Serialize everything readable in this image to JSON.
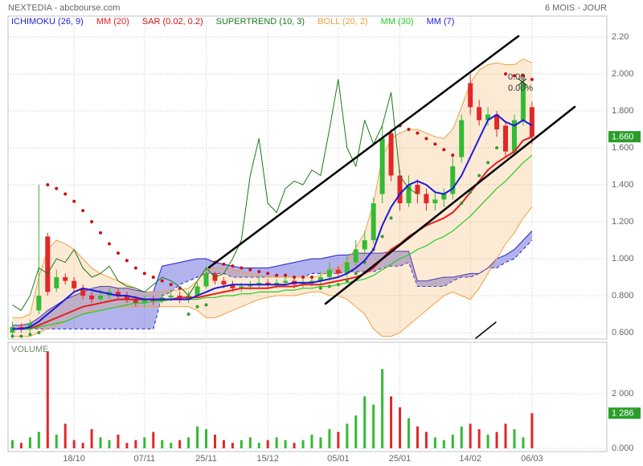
{
  "chart_data": [
    {
      "type": "candlestick",
      "title": "NEXTEDIA - abcbourse.com",
      "subtitle": "6 MOIS - JOUR",
      "categories": [
        null,
        null,
        null,
        null,
        null,
        null,
        null,
        "18/10",
        null,
        null,
        null,
        null,
        null,
        null,
        null,
        "07/11",
        null,
        null,
        null,
        null,
        null,
        null,
        "25/11",
        null,
        null,
        null,
        null,
        null,
        null,
        "15/12",
        null,
        null,
        null,
        null,
        null,
        null,
        null,
        "05/01",
        null,
        null,
        null,
        null,
        null,
        null,
        "25/01",
        null,
        null,
        null,
        null,
        null,
        null,
        null,
        "14/02",
        null,
        null,
        null,
        null,
        null,
        null,
        "06/03"
      ],
      "open": [
        0.6,
        0.63,
        0.62,
        0.72,
        1.12,
        0.84,
        0.9,
        0.88,
        0.84,
        0.8,
        0.78,
        0.8,
        0.82,
        0.8,
        0.78,
        0.76,
        0.78,
        0.77,
        0.79,
        0.8,
        0.78,
        0.8,
        0.85,
        0.92,
        0.88,
        0.86,
        0.84,
        0.85,
        0.86,
        0.87,
        0.86,
        0.87,
        0.88,
        0.86,
        0.87,
        0.88,
        0.9,
        0.94,
        0.92,
        0.98,
        1.05,
        1.1,
        1.35,
        1.68,
        1.45,
        1.3,
        1.4,
        1.35,
        1.3,
        1.32,
        1.35,
        1.55,
        1.95,
        1.82,
        1.75,
        1.78,
        1.72,
        1.58,
        1.75,
        1.82
      ],
      "high": [
        0.66,
        0.65,
        0.67,
        1.4,
        1.14,
        0.94,
        0.92,
        0.9,
        0.86,
        0.82,
        0.83,
        0.84,
        0.84,
        0.82,
        0.8,
        0.8,
        0.8,
        0.81,
        0.83,
        0.82,
        0.82,
        0.87,
        0.96,
        0.93,
        0.9,
        0.88,
        0.87,
        0.88,
        0.9,
        0.89,
        0.89,
        0.91,
        0.9,
        0.89,
        0.9,
        0.93,
        0.98,
        0.96,
        1.02,
        1.1,
        1.15,
        1.33,
        1.72,
        1.7,
        1.48,
        1.45,
        1.43,
        1.38,
        1.36,
        1.38,
        1.55,
        1.78,
        2.0,
        1.86,
        1.82,
        1.8,
        1.74,
        1.78,
        1.98,
        1.85
      ],
      "low": [
        0.58,
        0.6,
        0.6,
        0.7,
        0.8,
        0.82,
        0.86,
        0.82,
        0.78,
        0.76,
        0.77,
        0.78,
        0.78,
        0.76,
        0.74,
        0.74,
        0.75,
        0.76,
        0.77,
        0.76,
        0.76,
        0.79,
        0.84,
        0.86,
        0.84,
        0.82,
        0.82,
        0.83,
        0.84,
        0.84,
        0.84,
        0.85,
        0.84,
        0.84,
        0.85,
        0.86,
        0.88,
        0.9,
        0.9,
        0.96,
        1.02,
        1.08,
        1.3,
        1.42,
        1.26,
        1.28,
        1.3,
        1.26,
        1.26,
        1.28,
        1.32,
        1.52,
        1.78,
        1.72,
        1.72,
        1.66,
        1.55,
        1.56,
        1.72,
        1.62
      ],
      "close": [
        0.63,
        0.62,
        0.65,
        0.8,
        0.82,
        0.9,
        0.88,
        0.84,
        0.8,
        0.78,
        0.8,
        0.82,
        0.8,
        0.78,
        0.76,
        0.78,
        0.77,
        0.79,
        0.8,
        0.78,
        0.8,
        0.85,
        0.92,
        0.88,
        0.86,
        0.84,
        0.85,
        0.86,
        0.87,
        0.86,
        0.87,
        0.88,
        0.86,
        0.87,
        0.88,
        0.9,
        0.94,
        0.92,
        0.98,
        1.05,
        1.1,
        1.3,
        1.65,
        1.45,
        1.3,
        1.4,
        1.35,
        1.3,
        1.32,
        1.35,
        1.5,
        1.75,
        1.82,
        1.75,
        1.78,
        1.7,
        1.58,
        1.75,
        1.95,
        1.66
      ],
      "up_color": "#33bb33",
      "down_color": "#e02828",
      "last_label": "1.660",
      "annotations": [
        "0.00",
        "0.00%"
      ],
      "ylim": [
        0.565,
        2.313
      ],
      "yticks": [
        {
          "value": 0.6,
          "label": "0.600"
        },
        {
          "value": 0.8,
          "label": "0.800"
        },
        {
          "value": 1.0,
          "label": "1.000"
        },
        {
          "value": 1.2,
          "label": "1.200"
        },
        {
          "value": 1.4,
          "label": "1.400"
        },
        {
          "value": 1.6,
          "label": "1.600"
        },
        {
          "value": 1.8,
          "label": "1.800"
        },
        {
          "value": 2.0,
          "label": "2.000"
        },
        {
          "value": 2.2,
          "label": "2.20"
        }
      ],
      "grid": true,
      "series": [
        {
          "name": "ICHIMOKU (26, 9)",
          "kind": "cloud",
          "color": "#2222cc",
          "span_a": [
            0.64,
            0.64,
            0.65,
            0.68,
            0.72,
            0.75,
            0.78,
            0.8,
            0.82,
            0.84,
            0.85,
            0.85,
            0.84,
            0.84,
            0.83,
            0.82,
            0.82,
            0.96,
            0.97,
            0.98,
            0.99,
            1.0,
            1.0,
            0.98,
            0.97,
            0.96,
            0.95,
            0.95,
            0.95,
            0.95,
            0.96,
            0.97,
            0.98,
            0.99,
            1.0,
            1.0,
            1.01,
            1.02,
            1.02,
            1.03,
            1.03,
            1.03,
            1.03,
            1.04,
            1.04,
            1.04,
            0.88,
            0.88,
            0.89,
            0.9,
            0.9,
            0.91,
            0.92,
            0.92,
            0.95,
            1.0,
            1.02,
            1.05,
            1.1,
            1.15
          ],
          "span_b": [
            0.62,
            0.62,
            0.62,
            0.62,
            0.62,
            0.62,
            0.62,
            0.62,
            0.62,
            0.62,
            0.62,
            0.62,
            0.62,
            0.62,
            0.62,
            0.62,
            0.62,
            0.8,
            0.82,
            0.86,
            0.88,
            0.9,
            0.92,
            0.92,
            0.92,
            0.9,
            0.9,
            0.9,
            0.9,
            0.9,
            0.9,
            0.9,
            0.9,
            0.9,
            0.92,
            0.92,
            0.92,
            0.92,
            0.93,
            0.93,
            0.93,
            0.93,
            0.95,
            0.96,
            0.96,
            0.98,
            0.85,
            0.85,
            0.85,
            0.85,
            0.88,
            0.9,
            0.9,
            0.92,
            0.95,
            0.95,
            0.98,
            1.0,
            1.05,
            1.1
          ]
        },
        {
          "name": "MM (20)",
          "kind": "line",
          "color": "#e02020",
          "width": 2,
          "values": [
            0.62,
            0.62,
            0.62,
            0.64,
            0.66,
            0.68,
            0.7,
            0.72,
            0.74,
            0.75,
            0.76,
            0.77,
            0.78,
            0.78,
            0.78,
            0.78,
            0.78,
            0.78,
            0.78,
            0.79,
            0.79,
            0.79,
            0.8,
            0.81,
            0.82,
            0.83,
            0.84,
            0.84,
            0.84,
            0.84,
            0.85,
            0.85,
            0.85,
            0.86,
            0.86,
            0.86,
            0.87,
            0.88,
            0.89,
            0.9,
            0.92,
            0.95,
            1.0,
            1.05,
            1.08,
            1.12,
            1.15,
            1.18,
            1.2,
            1.22,
            1.25,
            1.3,
            1.36,
            1.42,
            1.48,
            1.52,
            1.55,
            1.58,
            1.64,
            1.66
          ]
        },
        {
          "name": "SAR (0.02, 0.2)",
          "kind": "dots",
          "colors": [
            "#cc1111",
            "#2e9e2e"
          ],
          "values": [
            0.58,
            0.58,
            0.59,
            0.6,
            1.4,
            1.38,
            1.35,
            1.31,
            1.26,
            1.2,
            1.14,
            1.08,
            1.03,
            0.99,
            0.95,
            0.92,
            0.9,
            0.88,
            0.86,
            0.84,
            0.7,
            0.74,
            0.75,
            0.98,
            0.97,
            0.96,
            0.95,
            0.94,
            0.93,
            0.92,
            0.91,
            0.91,
            0.9,
            0.9,
            0.9,
            0.84,
            0.85,
            0.86,
            0.88,
            0.92,
            0.98,
            1.05,
            1.12,
            1.22,
            1.72,
            1.7,
            1.68,
            1.65,
            1.62,
            1.59,
            1.56,
            1.3,
            1.36,
            1.45,
            1.52,
            1.6,
            2.0,
            1.99,
            1.99,
            1.97
          ]
        },
        {
          "name": "SUPERTREND (10, 3)",
          "kind": "line",
          "color": "#1a7a1a",
          "width": 1,
          "values": [
            0.75,
            0.72,
            0.8,
            0.95,
            0.92,
            1.0,
            0.98,
            1.05,
            0.95,
            0.9,
            0.92,
            0.96,
            0.88,
            0.85,
            0.84,
            0.82,
            0.86,
            0.9,
            0.88,
            0.85,
            0.8,
            0.88,
            0.95,
            0.9,
            0.92,
            1.0,
            1.1,
            1.45,
            1.65,
            1.3,
            1.25,
            1.38,
            1.42,
            1.4,
            1.48,
            1.45,
            1.7,
            1.97,
            1.6,
            1.5,
            1.75,
            1.62,
            1.72,
            1.9,
            1.45,
            1.38,
            1.35,
            null,
            null,
            null,
            null,
            null,
            null,
            null,
            null,
            null,
            null,
            null,
            null,
            null
          ]
        },
        {
          "name": "BOLL (20, 2)",
          "kind": "band",
          "color": "#f0a040",
          "upper": [
            0.68,
            0.68,
            0.7,
            0.9,
            1.05,
            1.1,
            1.08,
            1.05,
            1.0,
            0.95,
            0.92,
            0.9,
            0.88,
            0.86,
            0.84,
            0.82,
            0.82,
            0.82,
            0.83,
            0.83,
            0.84,
            0.88,
            0.94,
            0.95,
            0.95,
            0.94,
            0.93,
            0.92,
            0.91,
            0.9,
            0.9,
            0.9,
            0.9,
            0.9,
            0.9,
            0.91,
            0.94,
            0.95,
            0.99,
            1.06,
            1.14,
            1.3,
            1.55,
            1.65,
            1.68,
            1.7,
            1.7,
            1.68,
            1.66,
            1.65,
            1.7,
            1.82,
            1.95,
            2.02,
            2.05,
            2.06,
            2.05,
            2.05,
            2.08,
            2.06
          ],
          "lower": [
            0.58,
            0.58,
            0.58,
            0.6,
            0.62,
            0.64,
            0.66,
            0.68,
            0.7,
            0.72,
            0.72,
            0.73,
            0.74,
            0.74,
            0.74,
            0.74,
            0.74,
            0.74,
            0.74,
            0.74,
            0.74,
            0.72,
            0.68,
            0.68,
            0.7,
            0.72,
            0.74,
            0.76,
            0.78,
            0.79,
            0.8,
            0.8,
            0.8,
            0.81,
            0.82,
            0.82,
            0.8,
            0.8,
            0.78,
            0.74,
            0.7,
            0.62,
            0.58,
            0.58,
            0.6,
            0.64,
            0.68,
            0.72,
            0.76,
            0.8,
            0.82,
            0.8,
            0.78,
            0.84,
            0.92,
            1.0,
            1.08,
            1.14,
            1.22,
            1.28
          ]
        },
        {
          "name": "MM (30)",
          "kind": "line",
          "color": "#22cc22",
          "width": 1.2,
          "values": [
            0.62,
            0.62,
            0.62,
            0.63,
            0.64,
            0.65,
            0.66,
            0.68,
            0.7,
            0.71,
            0.72,
            0.73,
            0.74,
            0.75,
            0.76,
            0.76,
            0.77,
            0.77,
            0.78,
            0.78,
            0.78,
            0.78,
            0.79,
            0.79,
            0.8,
            0.8,
            0.81,
            0.81,
            0.82,
            0.82,
            0.82,
            0.83,
            0.83,
            0.84,
            0.84,
            0.85,
            0.85,
            0.86,
            0.87,
            0.88,
            0.89,
            0.91,
            0.94,
            0.97,
            1.0,
            1.02,
            1.05,
            1.07,
            1.1,
            1.12,
            1.15,
            1.19,
            1.23,
            1.28,
            1.33,
            1.38,
            1.42,
            1.47,
            1.52,
            1.56
          ]
        },
        {
          "name": "MM (7)",
          "kind": "line",
          "color": "#1a1add",
          "width": 2,
          "values": [
            0.62,
            0.62,
            0.63,
            0.66,
            0.7,
            0.74,
            0.78,
            0.82,
            0.84,
            0.83,
            0.82,
            0.81,
            0.8,
            0.8,
            0.79,
            0.78,
            0.78,
            0.78,
            0.78,
            0.78,
            0.78,
            0.8,
            0.82,
            0.84,
            0.85,
            0.86,
            0.86,
            0.86,
            0.86,
            0.86,
            0.86,
            0.86,
            0.87,
            0.87,
            0.87,
            0.88,
            0.89,
            0.9,
            0.92,
            0.95,
            0.99,
            1.05,
            1.18,
            1.28,
            1.35,
            1.4,
            1.42,
            1.4,
            1.36,
            1.35,
            1.38,
            1.45,
            1.55,
            1.65,
            1.75,
            1.78,
            1.74,
            1.72,
            1.75,
            1.72
          ]
        }
      ]
    },
    {
      "type": "bar",
      "title": "VOLUME",
      "values": [
        300,
        200,
        400,
        600,
        3550,
        500,
        900,
        300,
        200,
        700,
        400,
        300,
        500,
        200,
        300,
        400,
        600,
        300,
        200,
        300,
        400,
        800,
        700,
        500,
        300,
        200,
        300,
        400,
        200,
        300,
        400,
        300,
        200,
        300,
        500,
        400,
        700,
        600,
        900,
        1200,
        1900,
        1600,
        2900,
        1900,
        1500,
        1100,
        800,
        600,
        400,
        300,
        500,
        800,
        900,
        700,
        500,
        600,
        900,
        700,
        400,
        1286
      ],
      "last_label": "1 286",
      "ylim": [
        0,
        3880
      ],
      "yticks": [
        {
          "value": 0,
          "label": "0.000"
        },
        {
          "value": 2000,
          "label": "2 000"
        }
      ],
      "grid": true
    }
  ]
}
